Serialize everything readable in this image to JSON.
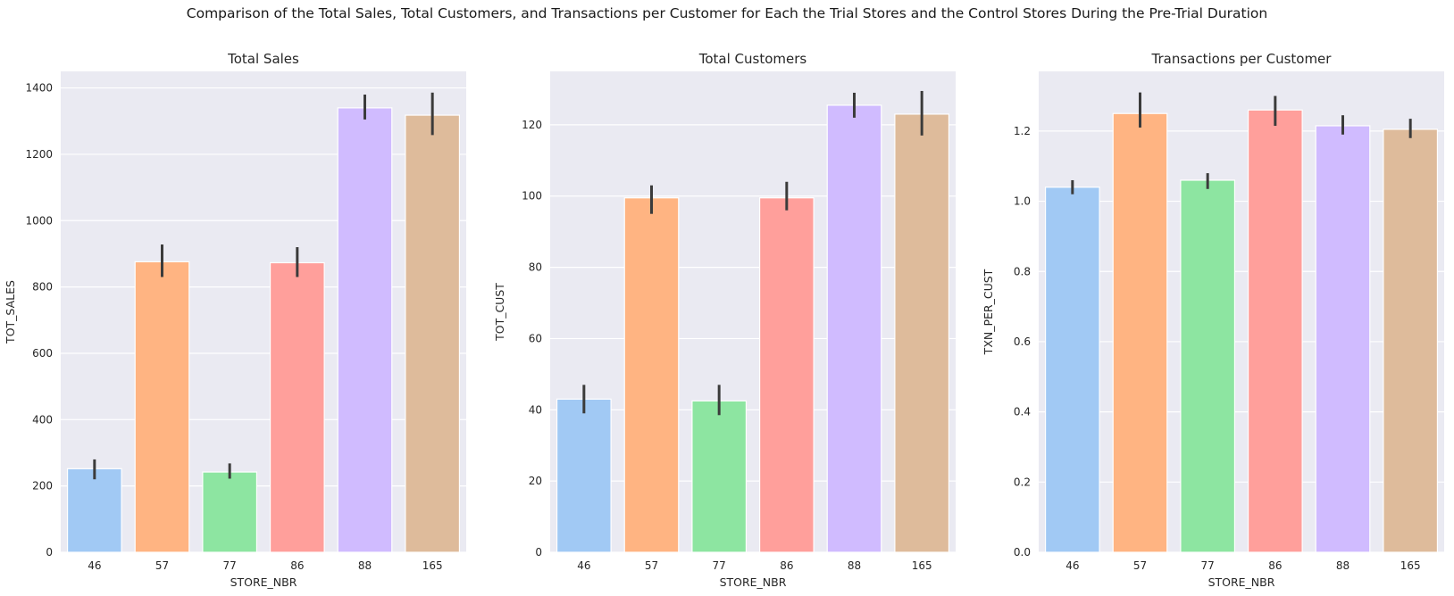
{
  "figure": {
    "title": "Comparison of the Total Sales, Total Customers, and Transactions per Customer for Each the Trial Stores and the Control Stores During the Pre-Trial Duration"
  },
  "colors": {
    "background": "#eaeaf2",
    "grid": "#ffffff",
    "errorbar": "#3b3b3b",
    "bars": [
      "#a1c9f4",
      "#ffb482",
      "#8de5a1",
      "#ff9f9b",
      "#d0bbff",
      "#debb9b"
    ]
  },
  "chart_data": [
    {
      "type": "bar",
      "title": "Total Sales",
      "xlabel": "STORE_NBR",
      "ylabel": "TOT_SALES",
      "categories": [
        "46",
        "57",
        "77",
        "86",
        "88",
        "165"
      ],
      "values": [
        252,
        876,
        242,
        873,
        1340,
        1318
      ],
      "error_low": [
        220,
        830,
        222,
        830,
        1305,
        1258
      ],
      "error_high": [
        280,
        928,
        268,
        920,
        1380,
        1386
      ],
      "ylim": [
        0,
        1450
      ],
      "yticks": [
        0,
        200,
        400,
        600,
        800,
        1000,
        1200,
        1400
      ],
      "ytick_labels": [
        "0",
        "200",
        "400",
        "600",
        "800",
        "1000",
        "1200",
        "1400"
      ],
      "grid": true
    },
    {
      "type": "bar",
      "title": "Total Customers",
      "xlabel": "STORE_NBR",
      "ylabel": "TOT_CUST",
      "categories": [
        "46",
        "57",
        "77",
        "86",
        "88",
        "165"
      ],
      "values": [
        43,
        99.5,
        42.5,
        99.5,
        125.5,
        123
      ],
      "error_low": [
        39,
        95,
        38.5,
        96,
        122,
        117
      ],
      "error_high": [
        47,
        103,
        47,
        104,
        129,
        129.5
      ],
      "ylim": [
        0,
        135
      ],
      "yticks": [
        0,
        20,
        40,
        60,
        80,
        100,
        120
      ],
      "ytick_labels": [
        "0",
        "20",
        "40",
        "60",
        "80",
        "100",
        "120"
      ],
      "grid": true
    },
    {
      "type": "bar",
      "title": "Transactions per Customer",
      "xlabel": "STORE_NBR",
      "ylabel": "TXN_PER_CUST",
      "categories": [
        "46",
        "57",
        "77",
        "86",
        "88",
        "165"
      ],
      "values": [
        1.04,
        1.25,
        1.06,
        1.26,
        1.215,
        1.205
      ],
      "error_low": [
        1.02,
        1.21,
        1.035,
        1.215,
        1.19,
        1.18
      ],
      "error_high": [
        1.06,
        1.31,
        1.08,
        1.3,
        1.245,
        1.235
      ],
      "ylim": [
        0,
        1.37
      ],
      "yticks": [
        0,
        0.2,
        0.4,
        0.6,
        0.8,
        1.0,
        1.2
      ],
      "ytick_labels": [
        "0.0",
        "0.2",
        "0.4",
        "0.6",
        "0.8",
        "1.0",
        "1.2"
      ],
      "grid": true
    }
  ]
}
